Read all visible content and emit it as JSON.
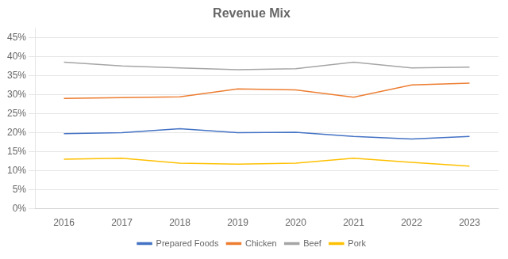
{
  "chart_data": {
    "type": "line",
    "title": "Revenue Mix",
    "x": [
      2016,
      2017,
      2018,
      2019,
      2020,
      2021,
      2022,
      2023
    ],
    "series": [
      {
        "name": "Prepared Foods",
        "color": "#4472C4",
        "values": [
          0.197,
          0.2,
          0.21,
          0.2,
          0.201,
          0.19,
          0.183,
          0.19
        ]
      },
      {
        "name": "Chicken",
        "color": "#ED7D31",
        "values": [
          0.29,
          0.292,
          0.294,
          0.315,
          0.312,
          0.293,
          0.325,
          0.33
        ]
      },
      {
        "name": "Beef",
        "color": "#A5A5A5",
        "values": [
          0.385,
          0.375,
          0.37,
          0.365,
          0.368,
          0.385,
          0.37,
          0.372
        ]
      },
      {
        "name": "Pork",
        "color": "#FFC000",
        "values": [
          0.13,
          0.133,
          0.12,
          0.117,
          0.12,
          0.133,
          0.122,
          0.112
        ]
      }
    ],
    "xlim": [
      2015.5,
      2023.5
    ],
    "xticks": [
      2016,
      2017,
      2018,
      2019,
      2020,
      2021,
      2022,
      2023
    ],
    "ylim": [
      0,
      0.475
    ],
    "yticks": [
      {
        "value": 0.0,
        "label": "0%"
      },
      {
        "value": 0.05,
        "label": "5%"
      },
      {
        "value": 0.1,
        "label": "10%"
      },
      {
        "value": 0.15,
        "label": "15%"
      },
      {
        "value": 0.2,
        "label": "20%"
      },
      {
        "value": 0.25,
        "label": "25%"
      },
      {
        "value": 0.3,
        "label": "30%"
      },
      {
        "value": 0.35,
        "label": "35%"
      },
      {
        "value": 0.4,
        "label": "40%"
      },
      {
        "value": 0.45,
        "label": "45%"
      }
    ],
    "grid": "y",
    "legend": "bottom"
  }
}
